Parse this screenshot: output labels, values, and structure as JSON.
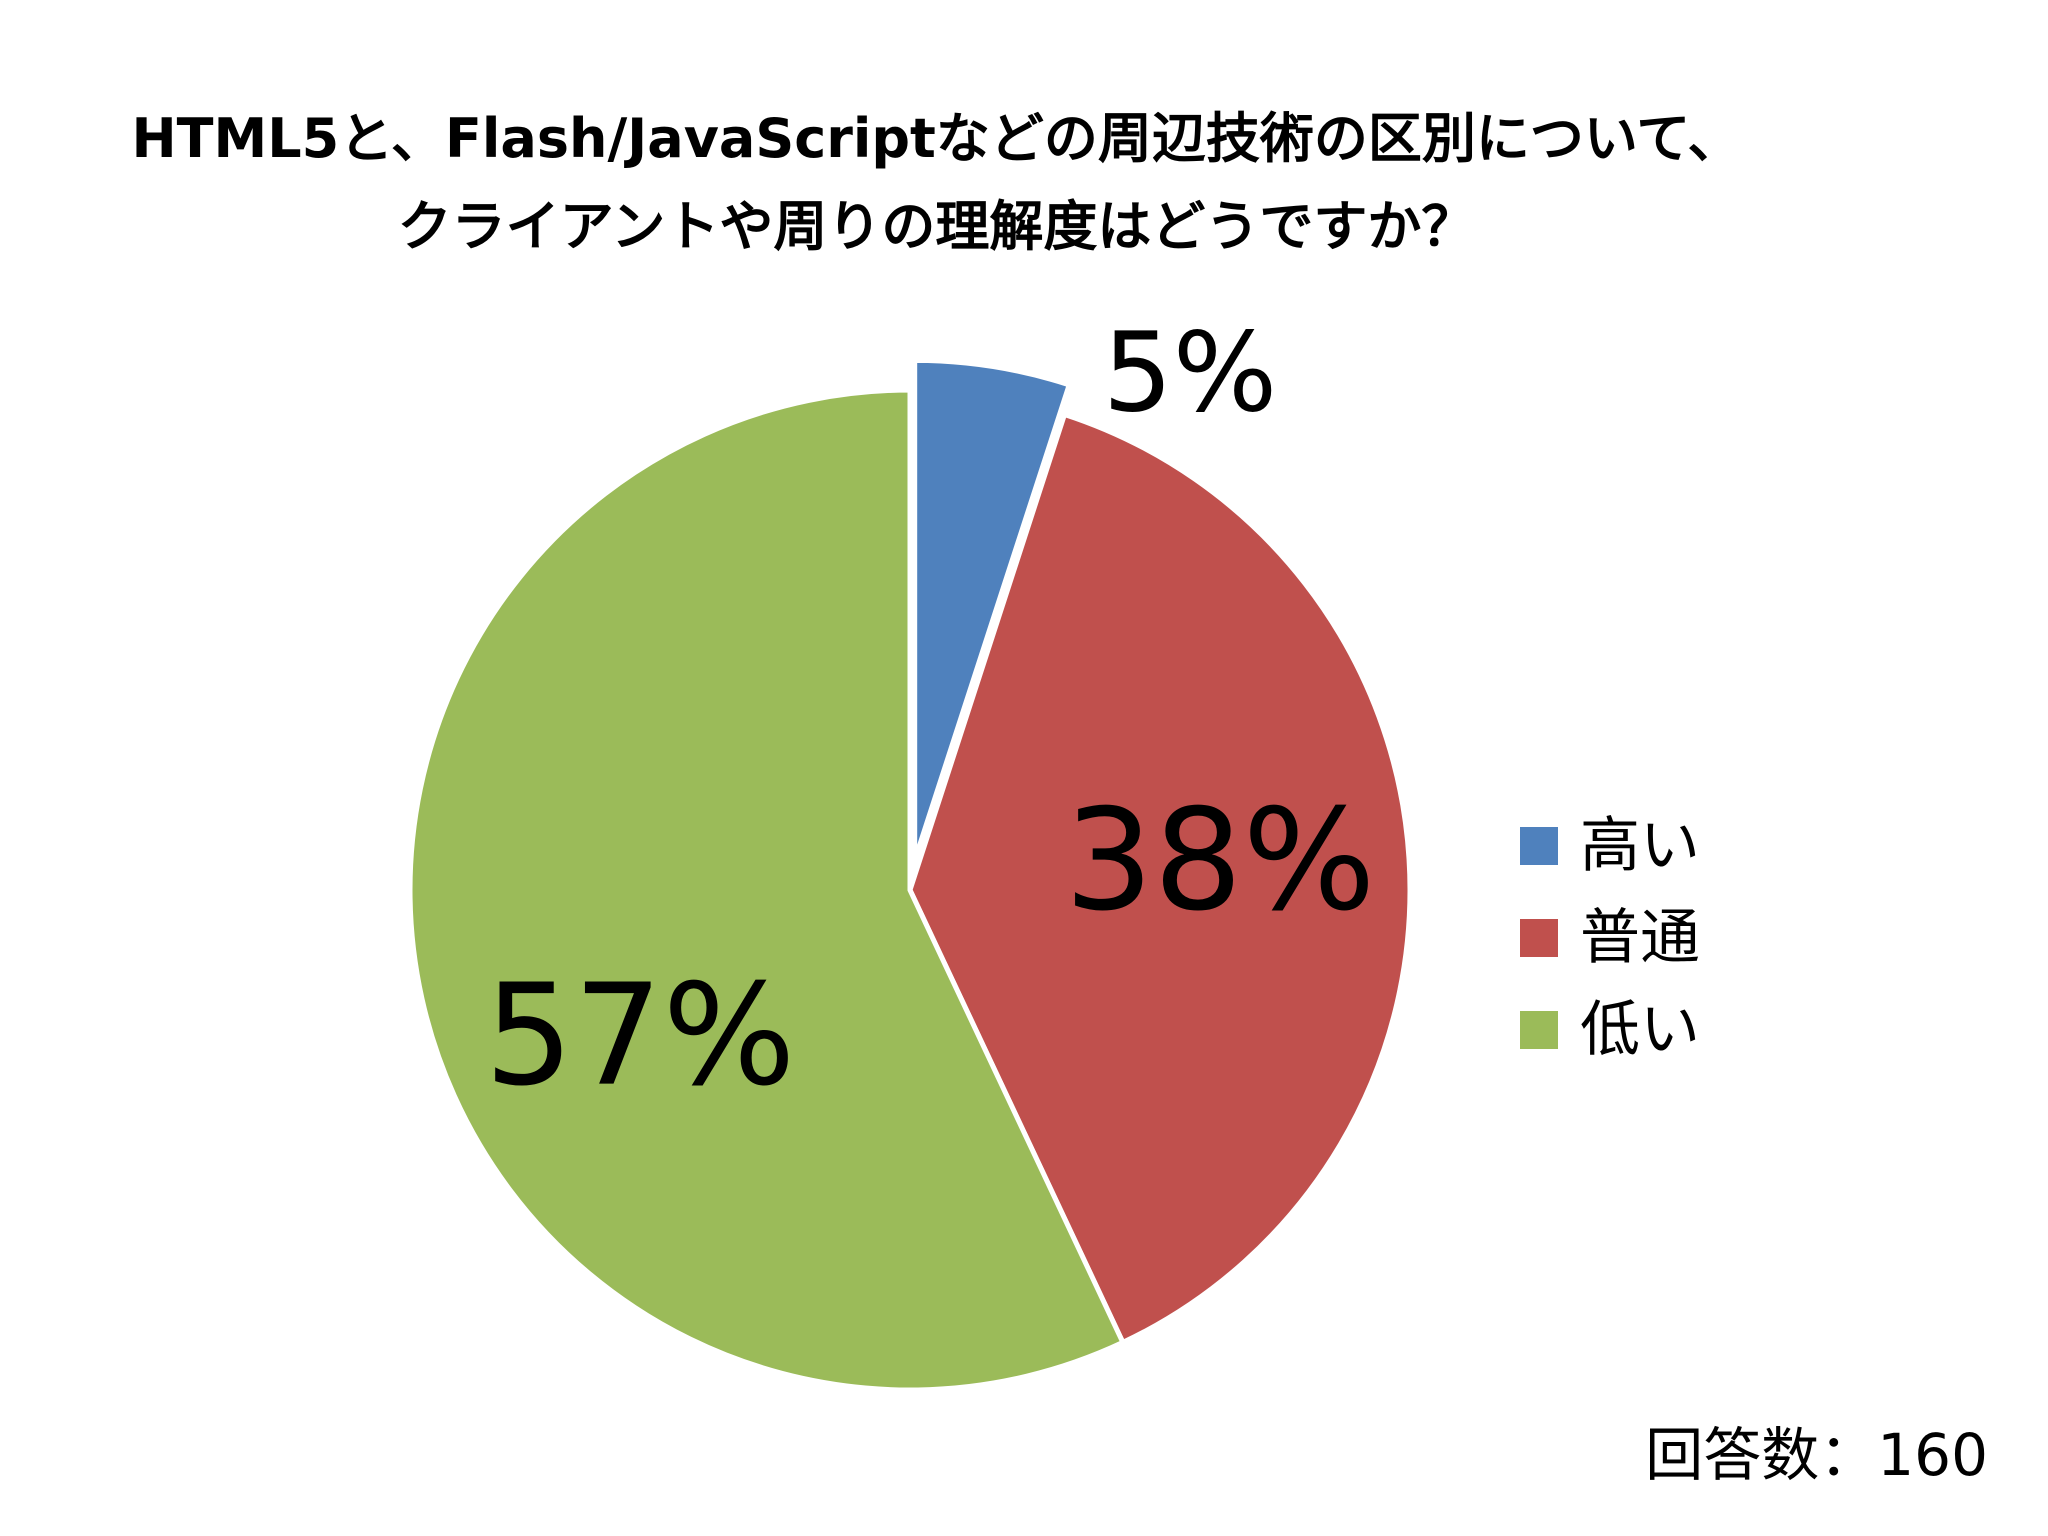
{
  "chart_data": {
    "type": "pie",
    "title_lines": [
      "HTML5と、Flash/JavaScriptなどの周辺技術の区別について、",
      "クライアントや周りの理解度はどうですか？"
    ],
    "categories": [
      "高い",
      "普通",
      "低い"
    ],
    "values": [
      5,
      38,
      57
    ],
    "data_labels": [
      "5%",
      "38%",
      "57%"
    ],
    "colors": [
      "#4F81BD",
      "#C0504D",
      "#9BBB59"
    ],
    "exploded_slice": "高い",
    "legend_position": "right"
  },
  "note": "回答数：160"
}
